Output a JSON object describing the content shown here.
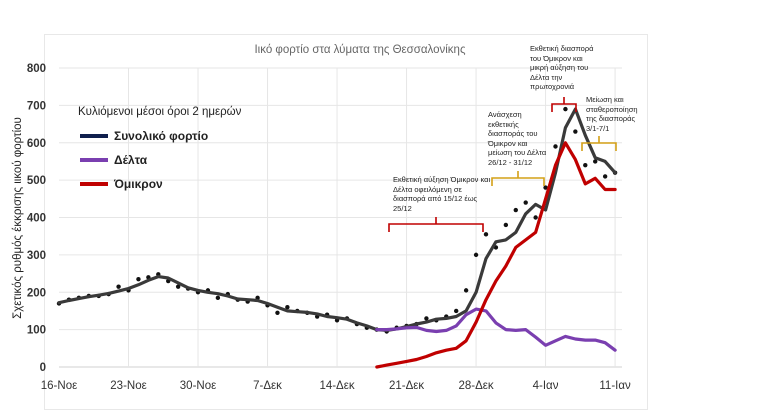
{
  "chart_data": {
    "type": "line",
    "title": "Ιικό φορτίο στα λύματα της Θεσσαλονίκης",
    "ylabel": "Σχετικός ρυθμός έκκρισης ιικού φορτίου",
    "xlabel": "",
    "ylim": [
      0,
      800
    ],
    "yticks": [
      "0",
      "100",
      "200",
      "300",
      "400",
      "500",
      "600",
      "700",
      "800"
    ],
    "xticks": [
      "16-Νοε",
      "23-Νοε",
      "30-Νοε",
      "7-Δεκ",
      "14-Δεκ",
      "21-Δεκ",
      "28-Δεκ",
      "4-Ιαν",
      "11-Ιαν"
    ],
    "x_days_from_16_nov_range": [
      0,
      56
    ],
    "grid": true,
    "legend": {
      "title": "Κυλιόμενοι μέσοι όροι 2 ημερών",
      "placement": "top-left",
      "entries": [
        "Συνολικό φορτίο",
        "Δέλτα",
        "Όμικρον"
      ]
    },
    "series": [
      {
        "name": "Συνολικό φορτίο",
        "color": "#3a3a3a",
        "start_day": 0,
        "values": [
          172,
          178,
          183,
          188,
          192,
          197,
          203,
          210,
          220,
          232,
          242,
          238,
          225,
          212,
          205,
          200,
          196,
          190,
          182,
          180,
          178,
          170,
          160,
          150,
          148,
          146,
          142,
          135,
          132,
          128,
          118,
          110,
          100,
          98,
          102,
          108,
          115,
          120,
          128,
          130,
          135,
          150,
          200,
          290,
          335,
          340,
          360,
          410,
          435,
          420,
          520,
          640,
          690,
          620,
          560,
          550,
          520
        ]
      },
      {
        "name": "Δέλτα",
        "color": "#7a3fb0",
        "start_day": 32,
        "values": [
          100,
          100,
          102,
          105,
          106,
          98,
          95,
          98,
          110,
          140,
          155,
          150,
          118,
          100,
          98,
          100,
          80,
          58,
          70,
          82,
          75,
          72,
          72,
          65,
          45
        ]
      },
      {
        "name": "Όμικρον",
        "color": "#c00000",
        "start_day": 32,
        "values": [
          0,
          5,
          10,
          15,
          20,
          28,
          38,
          45,
          50,
          70,
          120,
          180,
          230,
          270,
          320,
          340,
          360,
          450,
          540,
          600,
          555,
          490,
          505,
          475,
          475
        ]
      }
    ],
    "raw_points": {
      "Συνολικό φορτίο": {
        "start_day": 0,
        "values": [
          170,
          180,
          185,
          190,
          190,
          195,
          215,
          205,
          235,
          240,
          248,
          230,
          215,
          210,
          200,
          205,
          185,
          195,
          180,
          175,
          185,
          165,
          145,
          160,
          150,
          145,
          135,
          140,
          125,
          130,
          115,
          105,
          100,
          95,
          105,
          110,
          115,
          130,
          125,
          135,
          150,
          205,
          300,
          355,
          320,
          380,
          420,
          440,
          400,
          480,
          590,
          690,
          630,
          540,
          550,
          510,
          520
        ]
      }
    },
    "annotations": [
      {
        "text": "Εκθετική αύξηση Όμικρον και Δέλτα οφειλόμενη σε διασπορά από 15/12 έως 25/12",
        "color": "#c00000"
      },
      {
        "text": "Ανάσχεση εκθετικής διασποράς του Όμικρον και μείωση του Δέλτα 26/12 - 31/12",
        "color": "#d4a017"
      },
      {
        "text": "Εκθετική διασπορά του Όμικρον και μικρή αύξηση του Δέλτα την πρωτοχρονιά",
        "color": "#c00000"
      },
      {
        "text": "Μείωση και σταθεροποίηση της διασποράς 3/1-7/1",
        "color": "#d4a017"
      }
    ]
  }
}
